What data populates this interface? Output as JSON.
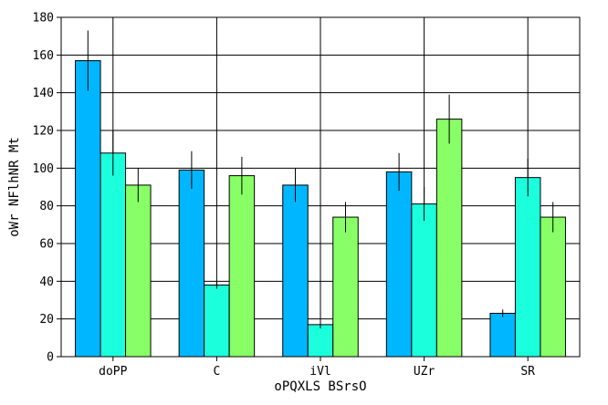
{
  "chart_data": {
    "type": "bar",
    "title": "",
    "xlabel": "oPQXLS BSrsO",
    "ylabel": "oWr NFlhNR Mt",
    "categories": [
      "doPP",
      "C",
      "iVl",
      "UZr",
      "SR"
    ],
    "ylim": [
      0,
      180
    ],
    "yticks": [
      0,
      20,
      40,
      60,
      80,
      100,
      120,
      140,
      160,
      180
    ],
    "grid": "x-and-y-at-ticks",
    "legend": "none",
    "series": [
      {
        "color": "#00b7ff",
        "values": [
          157,
          99,
          91,
          98,
          23
        ],
        "errors": [
          16,
          10,
          9,
          10,
          2
        ]
      },
      {
        "color": "#1cffdd",
        "values": [
          108,
          38,
          17,
          81,
          95
        ],
        "errors": [
          12,
          2,
          2,
          9,
          10
        ]
      },
      {
        "color": "#88ff66",
        "values": [
          91,
          96,
          74,
          126,
          74
        ],
        "errors": [
          9,
          10,
          8,
          13,
          8
        ]
      }
    ]
  }
}
